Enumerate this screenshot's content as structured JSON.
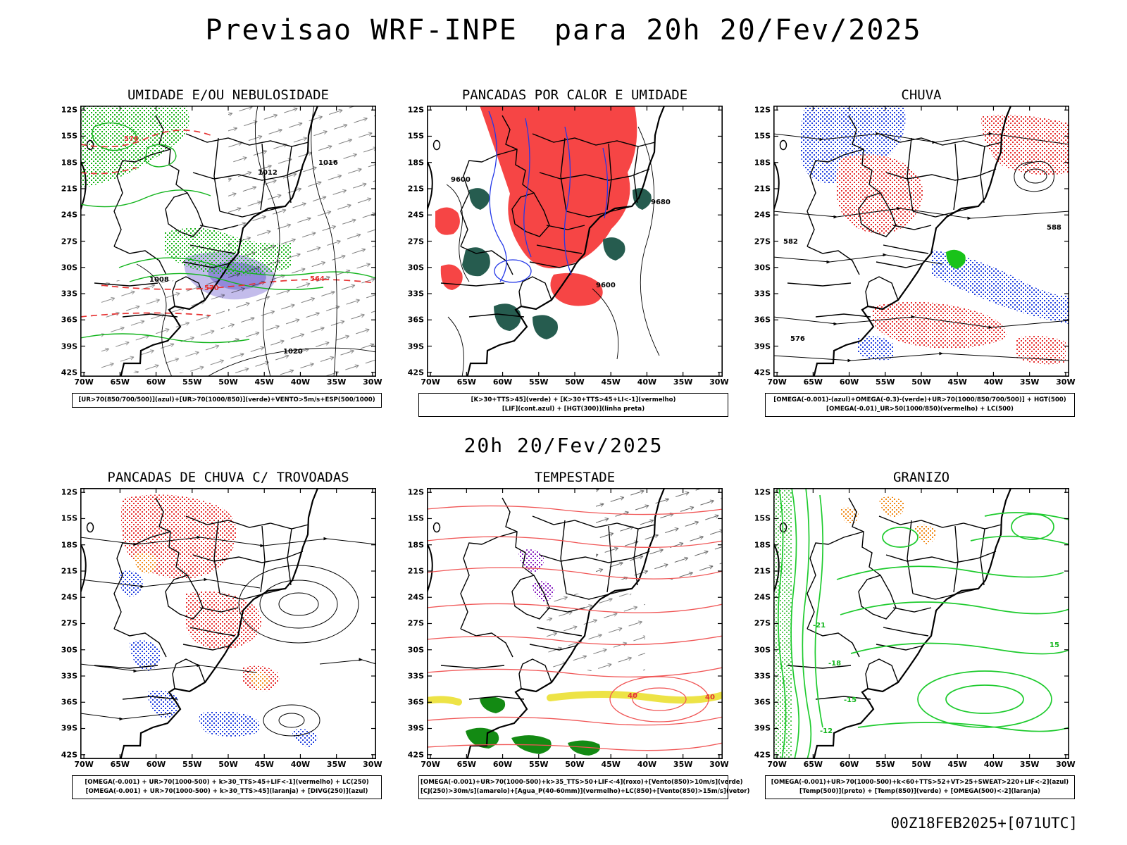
{
  "title": "Previsao WRF-INPE  para 20h 20/Fev/2025",
  "subtitle": "20h 20/Fev/2025",
  "footer": "00Z18FEB2025+[071UTC]",
  "axis": {
    "lat": [
      "12S",
      "15S",
      "18S",
      "21S",
      "24S",
      "27S",
      "30S",
      "33S",
      "36S",
      "39S",
      "42S"
    ],
    "lon": [
      "70W",
      "65W",
      "60W",
      "55W",
      "50W",
      "45W",
      "40W",
      "35W",
      "30W"
    ]
  },
  "colors": {
    "green_contour": "#12b41c",
    "red_fill": "#f64545",
    "teal_fill": "#265c4f",
    "blue_contour": "#2438e8",
    "red_speckle": "#e62e2e",
    "blue_speckle": "#2040e0",
    "orange_speckle": "#f08a18",
    "purple_speckle": "#8820c0",
    "lavender_shade": "#b9b0e8",
    "yellow_band": "#ece23c",
    "red_stream": "#f05555"
  },
  "panels": [
    {
      "id": "umidade",
      "title": "UMIDADE E/OU NEBULOSIDADE",
      "legend": [
        "[UR>70(850/700/500)](azul)+[UR>70(1000/850)](verde)+VENTO>5m/s+ESP(500/1000)"
      ],
      "map_labels": [
        "576",
        "570",
        "564",
        "1012",
        "1016",
        "1008",
        "1020"
      ]
    },
    {
      "id": "pancadas-calor",
      "title": "PANCADAS POR CALOR E UMIDADE",
      "legend": [
        "[K>30+TTS>45](verde) + [K>30+TTS>45+LI<-1](vermelho)",
        "[LIF](cont.azul) + [HGT(300)](linha preta)"
      ],
      "map_labels": [
        "9600",
        "9680",
        "9600"
      ]
    },
    {
      "id": "chuva",
      "title": "CHUVA",
      "legend": [
        "[OMEGA(-0.001)-(azul)+OMEGA(-0.3)-(verde)+UR>70(1000/850/700/500)] + HGT(500)",
        "[OMEGA(-0.01)_UR>50(1000/850)(vermelho) + LC(500)"
      ],
      "map_labels": [
        "582",
        "576",
        "588"
      ]
    },
    {
      "id": "trovoadas",
      "title": "PANCADAS DE CHUVA C/ TROVOADAS",
      "legend": [
        "[OMEGA(-0.001) + UR>70(1000-500) + k>30_TTS>45+LIF<-1](vermelho) + LC(250)",
        "[OMEGA(-0.001) + UR>70(1000-500) + k>30_TTS>45](laranja) + [DIVG(250)](azul)"
      ],
      "map_labels": []
    },
    {
      "id": "tempestade",
      "title": "TEMPESTADE",
      "legend": [
        "[OMEGA(-0.001)+UR>70(1000-500)+k>35_TTS>50+LIF<-4](roxo)+[Vento(850)>10m/s](verde)",
        "[CJ(250)>30m/s](amarelo)+[Agua_P(40-60mm)](vermelho)+LC(850)+[Vento(850)>15m/s](vetor)"
      ],
      "map_labels": [
        "40",
        "40"
      ]
    },
    {
      "id": "granizo",
      "title": "GRANIZO",
      "legend": [
        "[OMEGA(-0.001)+UR>70(1000-500)+k<60+TTS>52+VT>25+SWEAT>220+LIF<-2](azul)",
        "[Temp(500)](preto) + [Temp(850)](verde) + [OMEGA(500)<-2](laranja)"
      ],
      "map_labels": [
        "-21",
        "-18",
        "-15",
        "-12",
        "15"
      ]
    }
  ]
}
